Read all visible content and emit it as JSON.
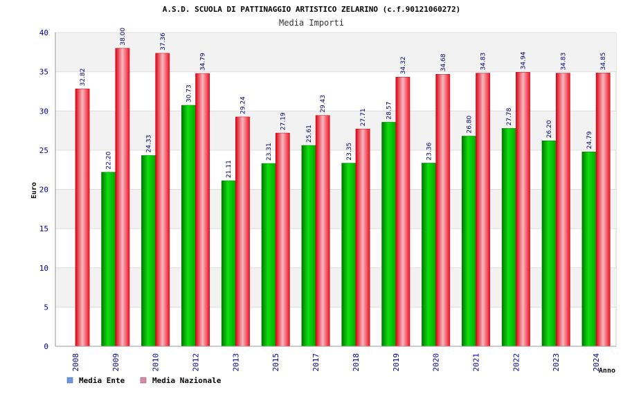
{
  "chart_data": {
    "type": "bar",
    "title": "A.S.D. SCUOLA DI PATTINAGGIO ARTISTICO ZELARINO (c.f.90121060272)",
    "subtitle": "Media Importi",
    "xlabel": "Anno",
    "ylabel": "Euro",
    "ylim": [
      0,
      40
    ],
    "yticks": [
      "0",
      "5",
      "10",
      "15",
      "20",
      "25",
      "30",
      "35",
      "40"
    ],
    "grid": true,
    "legend_position": "bottom-left",
    "categories": [
      "2008",
      "2009",
      "2010",
      "2012",
      "2013",
      "2015",
      "2017",
      "2018",
      "2019",
      "2020",
      "2021",
      "2022",
      "2023",
      "2024"
    ],
    "series": [
      {
        "name": "Media Ente",
        "color": "#00bb00",
        "legend_color": "#6699ee",
        "values": [
          null,
          22.2,
          24.33,
          30.73,
          21.11,
          23.31,
          25.61,
          23.35,
          28.57,
          23.36,
          26.8,
          27.78,
          26.2,
          24.79
        ],
        "labels": [
          "",
          "22.20",
          "24.33",
          "30.73",
          "21.11",
          "23.31",
          "25.61",
          "23.35",
          "28.57",
          "23.36",
          "26.80",
          "27.78",
          "26.20",
          "24.79"
        ]
      },
      {
        "name": "Media Nazionale",
        "color": "#ee2233",
        "legend_color": "#dd88aa",
        "values": [
          32.82,
          38.0,
          37.36,
          34.79,
          29.24,
          27.19,
          29.43,
          27.71,
          34.32,
          34.68,
          34.83,
          34.94,
          34.83,
          34.85
        ],
        "labels": [
          "32.82",
          "38.00",
          "37.36",
          "34.79",
          "29.24",
          "27.19",
          "29.43",
          "27.71",
          "34.32",
          "34.68",
          "34.83",
          "34.94",
          "34.83",
          "34.85"
        ]
      }
    ]
  }
}
